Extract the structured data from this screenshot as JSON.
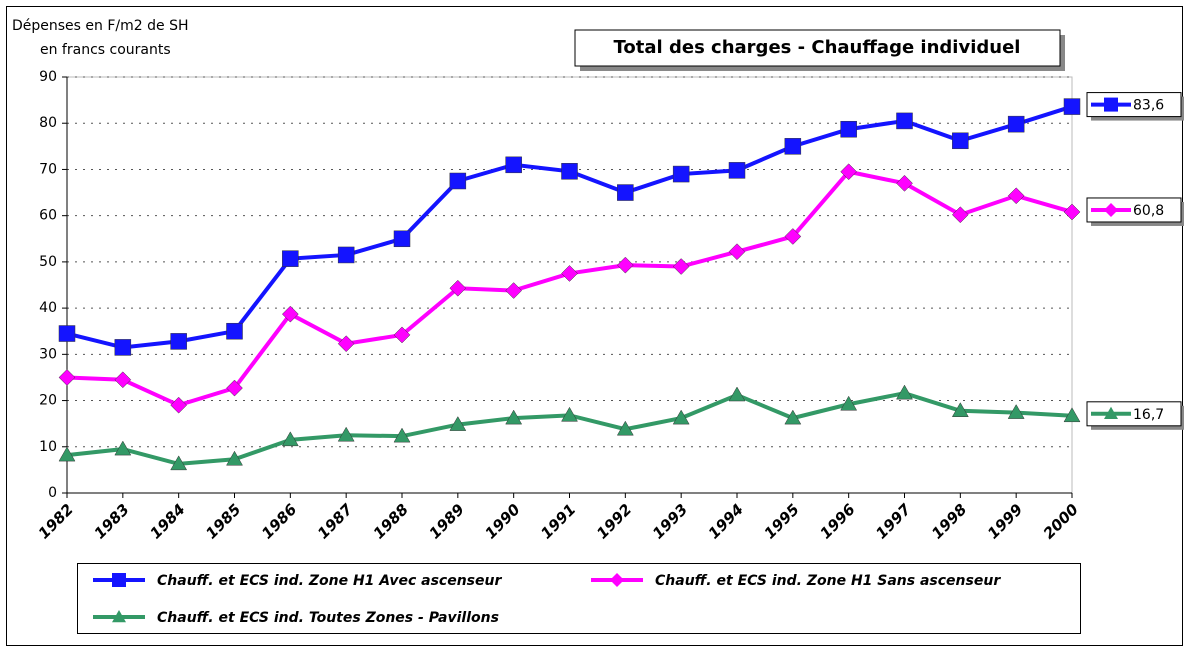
{
  "chart_data": {
    "type": "line",
    "title": "Total des charges - Chauffage individuel",
    "y_label": [
      "Dépenses en F/m2 de SH",
      "en francs courants"
    ],
    "categories": [
      "1982",
      "1983",
      "1984",
      "1985",
      "1986",
      "1987",
      "1988",
      "1989",
      "1990",
      "1991",
      "1992",
      "1993",
      "1994",
      "1995",
      "1996",
      "1997",
      "1998",
      "1999",
      "2000"
    ],
    "ylim": [
      0,
      90
    ],
    "yticks": [
      0,
      10,
      20,
      30,
      40,
      50,
      60,
      70,
      80,
      90
    ],
    "grid": true,
    "legend": "bottom",
    "series": [
      {
        "name": "Chauff. et ECS ind. Zone H1 Avec ascenseur",
        "color": "#1414ff",
        "marker": "square",
        "values": [
          34.5,
          31.5,
          32.8,
          35,
          50.7,
          51.5,
          55,
          67.5,
          71,
          69.6,
          65,
          69,
          69.8,
          75,
          78.7,
          80.5,
          76.2,
          79.8,
          83.6
        ],
        "value_labels": [
          null,
          null,
          null,
          null,
          null,
          null,
          null,
          null,
          null,
          null,
          null,
          null,
          null,
          null,
          null,
          null,
          null,
          null,
          "83,6"
        ]
      },
      {
        "name": "Chauff. et ECS ind. Zone H1 Sans ascenseur",
        "color": "#ff00ff",
        "marker": "diamond",
        "values": [
          25,
          24.5,
          19,
          22.7,
          38.7,
          32.3,
          34.2,
          44.3,
          43.8,
          47.5,
          49.3,
          49,
          52.2,
          55.5,
          69.5,
          67,
          60.2,
          64.3,
          60.8
        ],
        "value_labels": [
          null,
          null,
          null,
          null,
          null,
          null,
          null,
          null,
          null,
          null,
          null,
          null,
          null,
          null,
          null,
          null,
          null,
          null,
          "60,8"
        ]
      },
      {
        "name": "Chauff. et ECS ind. Toutes Zones - Pavillons",
        "color": "#339966",
        "marker": "triangle",
        "values": [
          8.2,
          9.5,
          6.3,
          7.3,
          11.5,
          12.5,
          12.3,
          14.8,
          16.2,
          16.8,
          13.8,
          16.2,
          21.2,
          16.2,
          19.2,
          21.6,
          17.8,
          17.4,
          16.7
        ],
        "value_labels": [
          null,
          null,
          null,
          null,
          null,
          null,
          null,
          null,
          null,
          null,
          null,
          null,
          null,
          null,
          null,
          null,
          null,
          null,
          "16,7"
        ]
      }
    ]
  }
}
